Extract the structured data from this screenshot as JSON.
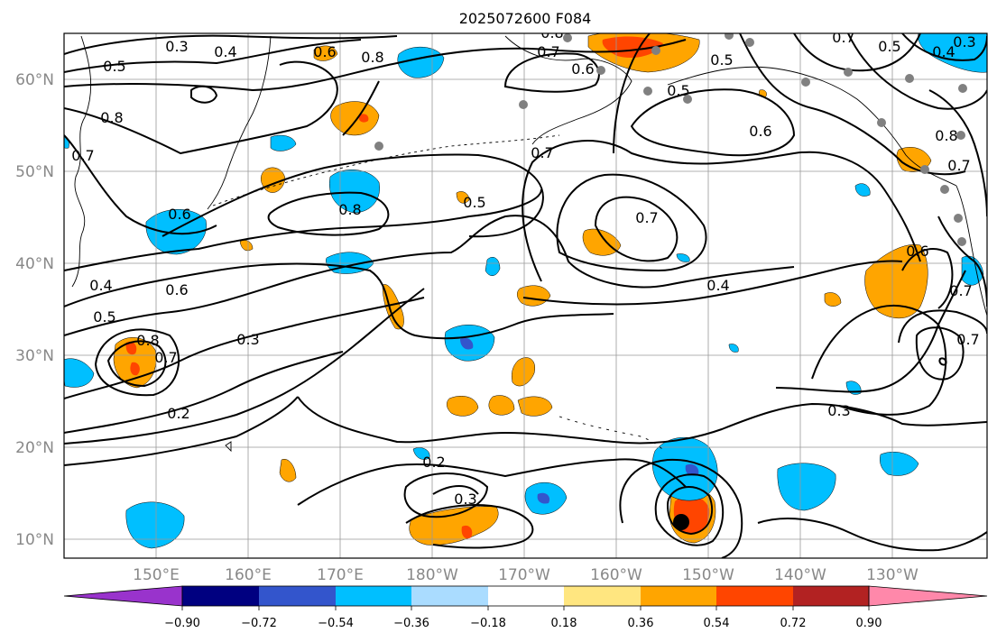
{
  "title": "2025072600 F084",
  "lat_labels": [
    "60°N",
    "50°N",
    "40°N",
    "30°N",
    "20°N",
    "10°N"
  ],
  "lon_labels": [
    "150°E",
    "160°E",
    "170°E",
    "180°W",
    "170°W",
    "160°W",
    "150°W",
    "140°W",
    "130°W"
  ],
  "colorbar": {
    "tick_labels": [
      "−0.90",
      "−0.72",
      "−0.54",
      "−0.36",
      "−0.18",
      "0.18",
      "0.36",
      "0.54",
      "0.72",
      "0.90"
    ],
    "colors": [
      "#9933cc",
      "#000080",
      "#3355cc",
      "#00bfff",
      "#aadcff",
      "#ffffff",
      "#ffe680",
      "#ffa500",
      "#ff4500",
      "#b22222",
      "#ff88aa"
    ]
  },
  "contour_labels": [
    "0.3",
    "0.4",
    "0.5",
    "0.6",
    "0.8",
    "0.8",
    "0.7",
    "0.6",
    "0.8",
    "0.5",
    "0.7",
    "0.6",
    "0.4",
    "0.5",
    "0.8",
    "0.7",
    "0.3",
    "0.2",
    "0.2",
    "0.3",
    "0.7",
    "0.4",
    "0.6",
    "0.7",
    "0.3",
    "0.7",
    "0.8",
    "0.7",
    "0.5",
    "0.4",
    "0.3",
    "0.7",
    "0.8",
    "0.6",
    "0.5",
    "0.6",
    "0.7",
    "0.5"
  ]
}
